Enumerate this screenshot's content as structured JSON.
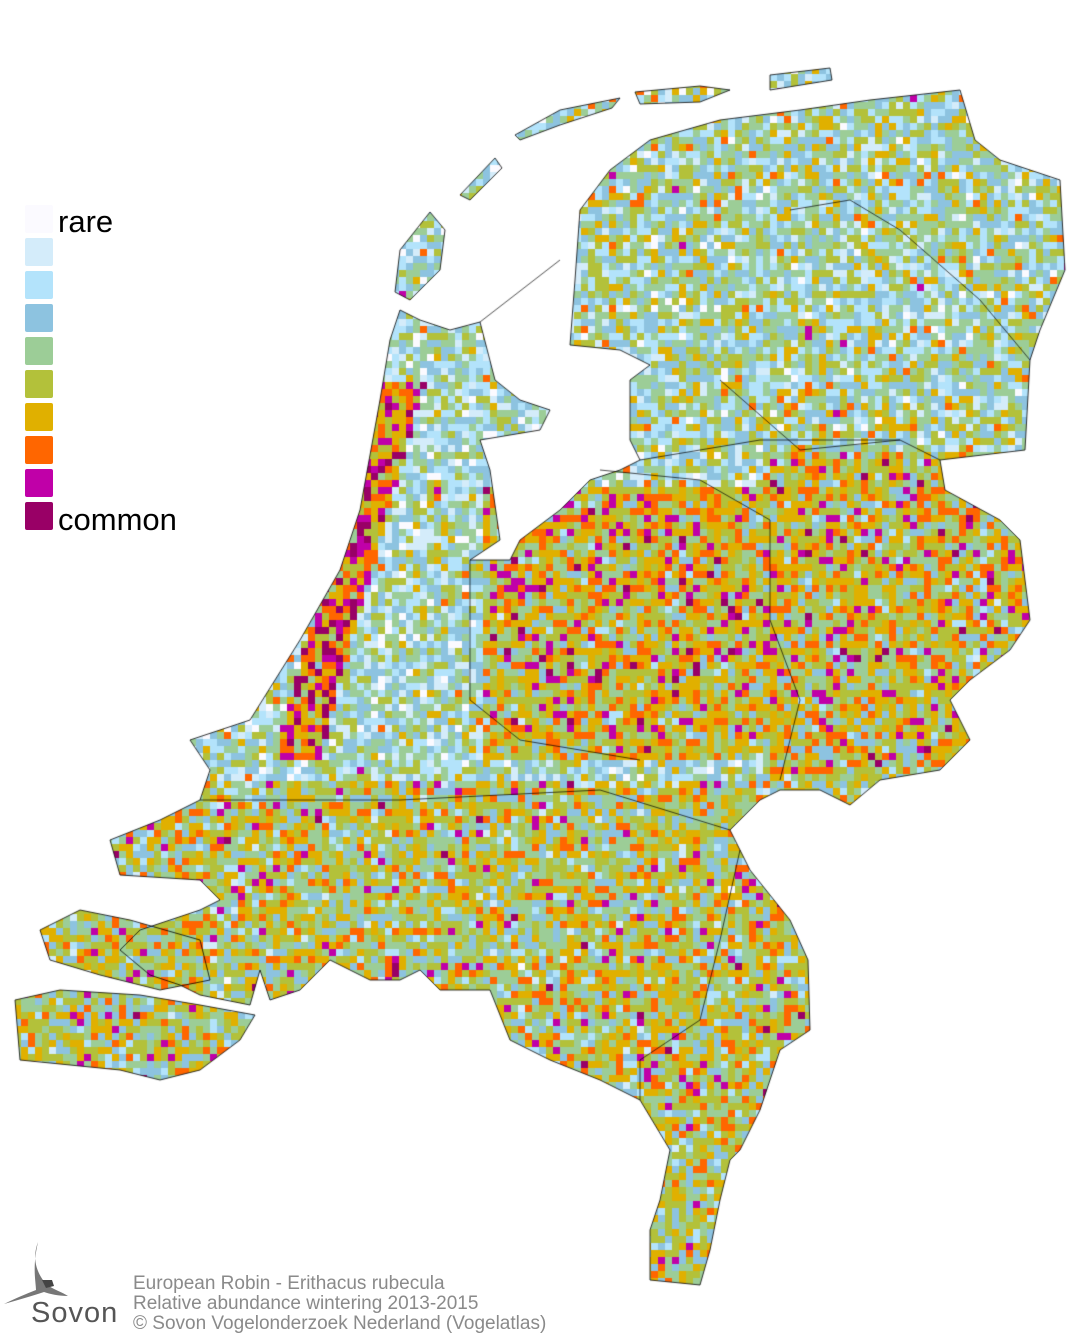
{
  "legend": {
    "min_label": "rare",
    "max_label": "common",
    "colors": [
      "#fbfaff",
      "#d4ecfa",
      "#b3e3fb",
      "#8dc3e0",
      "#9ccd97",
      "#b3c13a",
      "#e0b000",
      "#ff6600",
      "#c000a8",
      "#990066"
    ]
  },
  "credits": {
    "species": "European Robin - Erithacus rubecula",
    "subtitle": "Relative abundance wintering 2013-2015",
    "copyright": "© Sovon Vogelonderzoek Nederland (Vogelatlas)"
  },
  "logo": {
    "text": "Sovon"
  },
  "map": {
    "region": "Netherlands",
    "border_color": "#000000"
  }
}
